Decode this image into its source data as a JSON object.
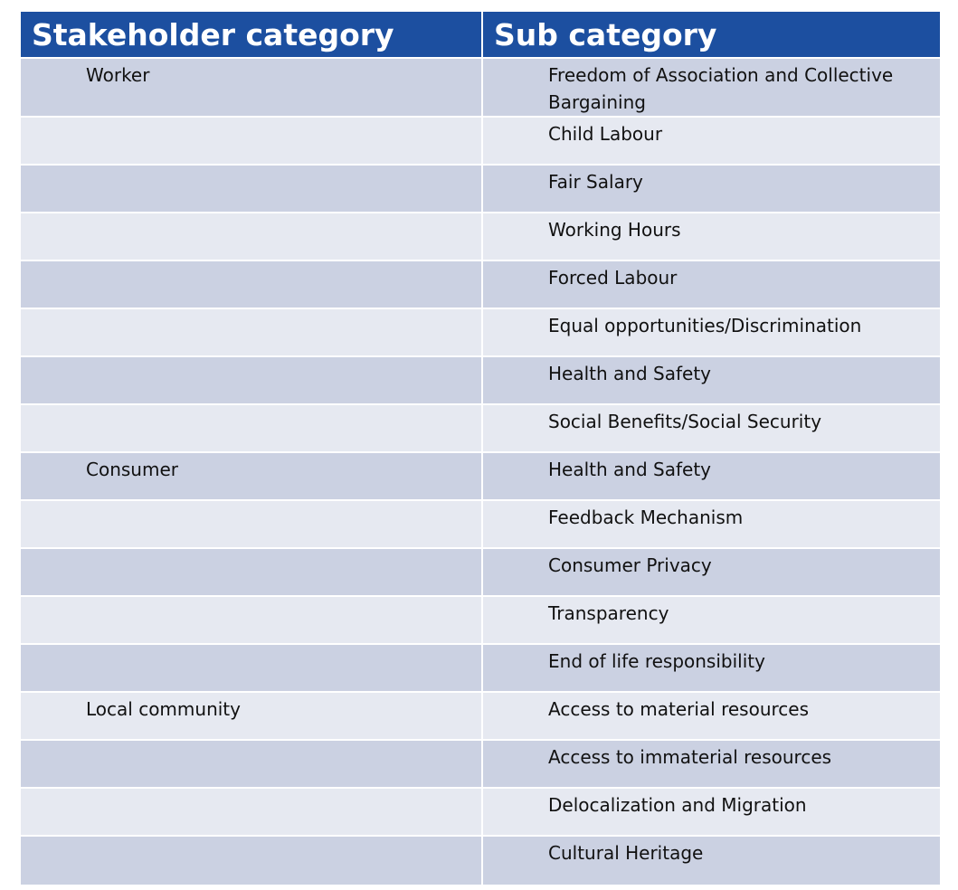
{
  "header": {
    "col1": "Stakeholder category",
    "col2": "Sub category"
  },
  "rows": [
    {
      "category": "Worker",
      "sub": "Freedom of Association and Collective Bargaining"
    },
    {
      "category": "",
      "sub": "Child Labour"
    },
    {
      "category": "",
      "sub": "Fair Salary"
    },
    {
      "category": "",
      "sub": "Working Hours"
    },
    {
      "category": "",
      "sub": "Forced Labour"
    },
    {
      "category": "",
      "sub": "Equal opportunities/Discrimination"
    },
    {
      "category": "",
      "sub": "Health and Safety"
    },
    {
      "category": "",
      "sub": "Social Benefits/Social Security"
    },
    {
      "category": "Consumer",
      "sub": "Health and Safety"
    },
    {
      "category": "",
      "sub": "Feedback Mechanism"
    },
    {
      "category": "",
      "sub": "Consumer Privacy"
    },
    {
      "category": "",
      "sub": "Transparency"
    },
    {
      "category": "",
      "sub": "End of life responsibility"
    },
    {
      "category": "Local community",
      "sub": "Access to material resources"
    },
    {
      "category": "",
      "sub": "Access to immaterial resources"
    },
    {
      "category": "",
      "sub": "Delocalization and Migration"
    },
    {
      "category": "",
      "sub": "Cultural Heritage"
    }
  ],
  "colors": {
    "header_bg": "#1c4fa0",
    "row_dark": "#cbd1e2",
    "row_light": "#e6e9f1"
  }
}
